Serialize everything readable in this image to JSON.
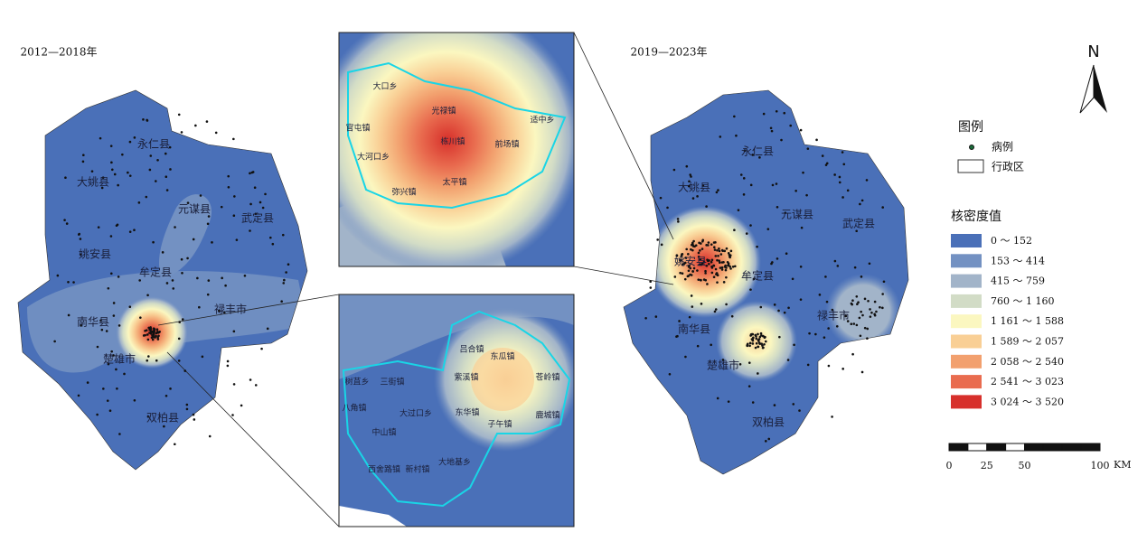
{
  "maps": [
    {
      "title": "2012—2018年",
      "labels": [
        "永仁县",
        "大姚县",
        "元谋县",
        "武定县",
        "姚安县",
        "牟定县",
        "禄丰市",
        "南华县",
        "楚雄市",
        "双柏县"
      ]
    },
    {
      "title": "2019—2023年",
      "labels": [
        "永仁县",
        "大姚县",
        "元谋县",
        "武定县",
        "姚安县",
        "牟定县",
        "禄丰市",
        "南华县",
        "楚雄市",
        "双柏县"
      ]
    }
  ],
  "insets": [
    {
      "labels": [
        "大口乡",
        "光禄镇",
        "官屯镇",
        "栋川镇",
        "前场镇",
        "适中乡",
        "大河口乡",
        "弥兴镇",
        "太平镇"
      ]
    },
    {
      "labels": [
        "吕合镇",
        "东瓜镇",
        "紫溪镇",
        "苍岭镇",
        "树苴乡",
        "三街镇",
        "八角镇",
        "大过口乡",
        "东华镇",
        "鹿城镇",
        "子午镇",
        "中山镇",
        "西舍路镇",
        "新村镇",
        "大地基乡"
      ]
    }
  ],
  "north": "N",
  "legend": {
    "title": "图例",
    "items": [
      "病例",
      "行政区"
    ],
    "density_title": "核密度值",
    "classes": [
      {
        "label": "0 ～ 152",
        "color": "#4a70b8"
      },
      {
        "label": "153 ～ 414",
        "color": "#7391c2"
      },
      {
        "label": "415 ～ 759",
        "color": "#a2b4c9"
      },
      {
        "label": "760 ～ 1 160",
        "color": "#d2dcc6"
      },
      {
        "label": "1 161 ～ 1 588",
        "color": "#fbf7c0"
      },
      {
        "label": "1 589 ～ 2 057",
        "color": "#f9cf95"
      },
      {
        "label": "2 058 ～ 2 540",
        "color": "#f2a06e"
      },
      {
        "label": "2 541 ～ 3 023",
        "color": "#e96c4f"
      },
      {
        "label": "3 024 ～ 3 520",
        "color": "#d7302b"
      }
    ]
  },
  "scale": {
    "ticks": [
      0,
      25,
      50,
      100
    ],
    "unit": "KM"
  }
}
